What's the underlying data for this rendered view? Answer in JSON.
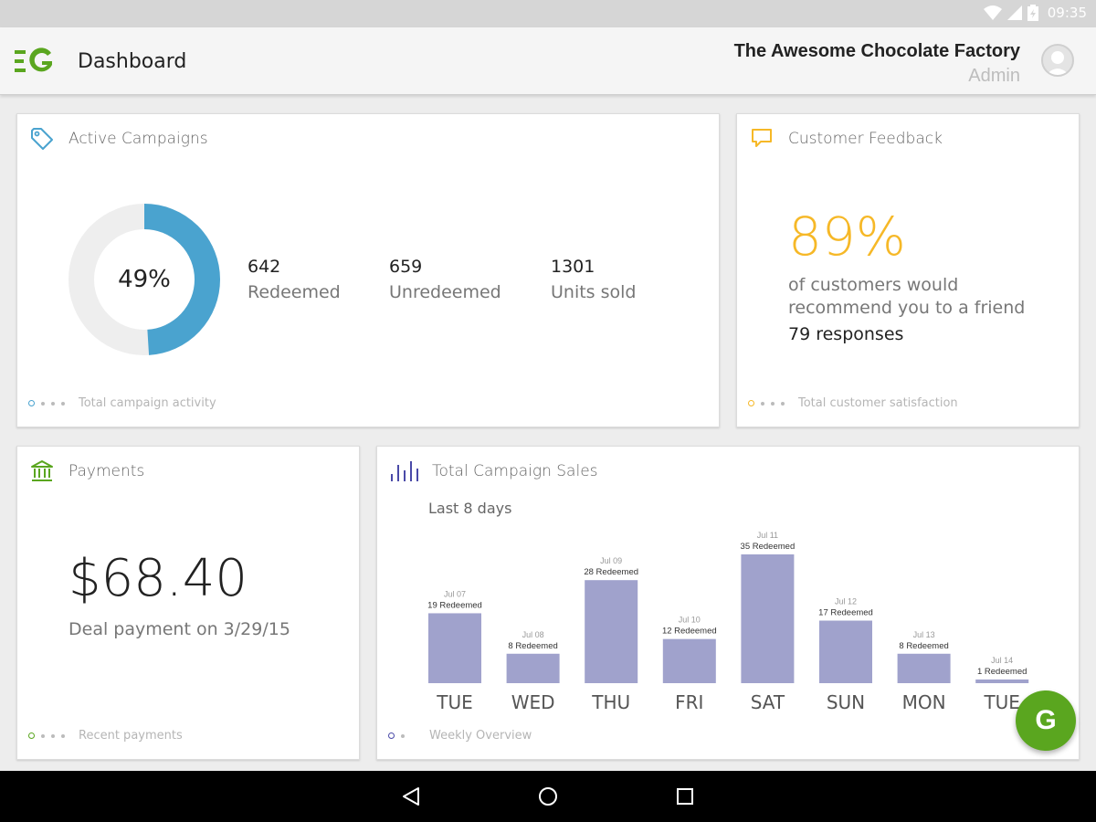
{
  "status_bar": {
    "time": "09:35"
  },
  "app_bar": {
    "title": "Dashboard",
    "company_name": "The Awesome Chocolate Factory",
    "role": "Admin"
  },
  "cards": {
    "campaigns": {
      "title": "Active Campaigns",
      "donut_percent_label": "49%",
      "donut_fraction": 0.49,
      "stats": [
        {
          "value": "642",
          "label": "Redeemed"
        },
        {
          "value": "659",
          "label": "Unredeemed"
        },
        {
          "value": "1301",
          "label": "Units sold"
        }
      ],
      "footer": "Total campaign activity",
      "accent": "#4aa3cf"
    },
    "feedback": {
      "title": "Customer Feedback",
      "percent": "89%",
      "text": "of customers would recommend you to a friend",
      "responses": "79 responses",
      "footer": "Total customer satisfaction",
      "accent": "#f6b827"
    },
    "payments": {
      "title": "Payments",
      "amount": "$68.40",
      "description": "Deal payment on 3/29/15",
      "footer": "Recent payments",
      "accent": "#5aa61f"
    },
    "sales": {
      "title": "Total Campaign Sales",
      "subtitle": "Last 8 days",
      "footer": "Weekly Overview",
      "accent": "#4a4aa8"
    }
  },
  "chart_data": {
    "type": "bar",
    "categories": [
      "TUE",
      "WED",
      "THU",
      "FRI",
      "SAT",
      "SUN",
      "MON",
      "TUE"
    ],
    "dates": [
      "Jul 07",
      "Jul 08",
      "Jul 09",
      "Jul 10",
      "Jul 11",
      "Jul 12",
      "Jul 13",
      "Jul 14"
    ],
    "values": [
      19,
      8,
      28,
      12,
      35,
      17,
      8,
      1
    ],
    "value_labels": [
      "19 Redeemed",
      "8 Redeemed",
      "28 Redeemed",
      "12 Redeemed",
      "35 Redeemed",
      "17 Redeemed",
      "8 Redeemed",
      "1 Redeemed"
    ],
    "bar_color": "#a0a2cc",
    "grid": false
  },
  "fab": {
    "label": "G"
  },
  "colors": {
    "brand_green": "#5aa61f",
    "blue": "#4aa3cf",
    "orange": "#f6b827",
    "indigo": "#4a4aa8"
  }
}
